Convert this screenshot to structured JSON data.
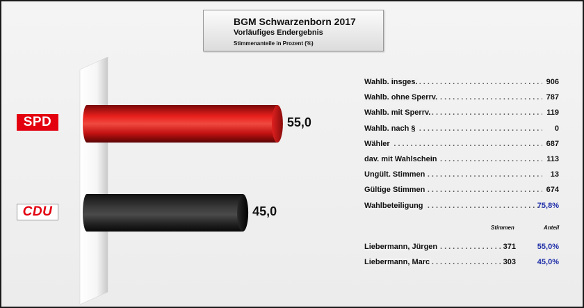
{
  "title": {
    "main": "BGM Schwarzenborn 2017",
    "sub": "Vorläufiges Endergebnis",
    "note": "Stimmenanteile in Prozent (%)"
  },
  "colors": {
    "spd": "#e3000f",
    "cdu": "#222222",
    "share_blue": "#1e2ea8"
  },
  "chart_data": {
    "type": "bar",
    "orientation": "horizontal",
    "categories": [
      "SPD",
      "CDU"
    ],
    "values": [
      55.0,
      45.0
    ],
    "value_labels": [
      "55,0",
      "45,0"
    ],
    "xlim": [
      0,
      100
    ],
    "grid": false
  },
  "parties": [
    {
      "name": "SPD"
    },
    {
      "name": "CDU"
    }
  ],
  "stats": [
    {
      "label": "Wahlb. insges.",
      "value": "906"
    },
    {
      "label": "Wahlb. ohne Sperrv.",
      "value": "787"
    },
    {
      "label": "Wahlb. mit Sperrv.",
      "value": "119"
    },
    {
      "label": "Wahlb. nach §",
      "value": "0"
    },
    {
      "label": "Wähler",
      "value": "687"
    },
    {
      "label": "dav. mit Wahlschein",
      "value": "113"
    },
    {
      "label": "Ungült. Stimmen",
      "value": "13"
    },
    {
      "label": "Gültige Stimmen",
      "value": "674"
    },
    {
      "label": "Wahlbeteiligung",
      "value": "75,8%"
    }
  ],
  "candidate_headers": {
    "votes": "Stimmen",
    "share": "Anteil"
  },
  "candidates": [
    {
      "name": "Liebermann, Jürgen",
      "votes": "371",
      "share": "55,0%"
    },
    {
      "name": "Liebermann, Marc",
      "votes": "303",
      "share": "45,0%"
    }
  ]
}
